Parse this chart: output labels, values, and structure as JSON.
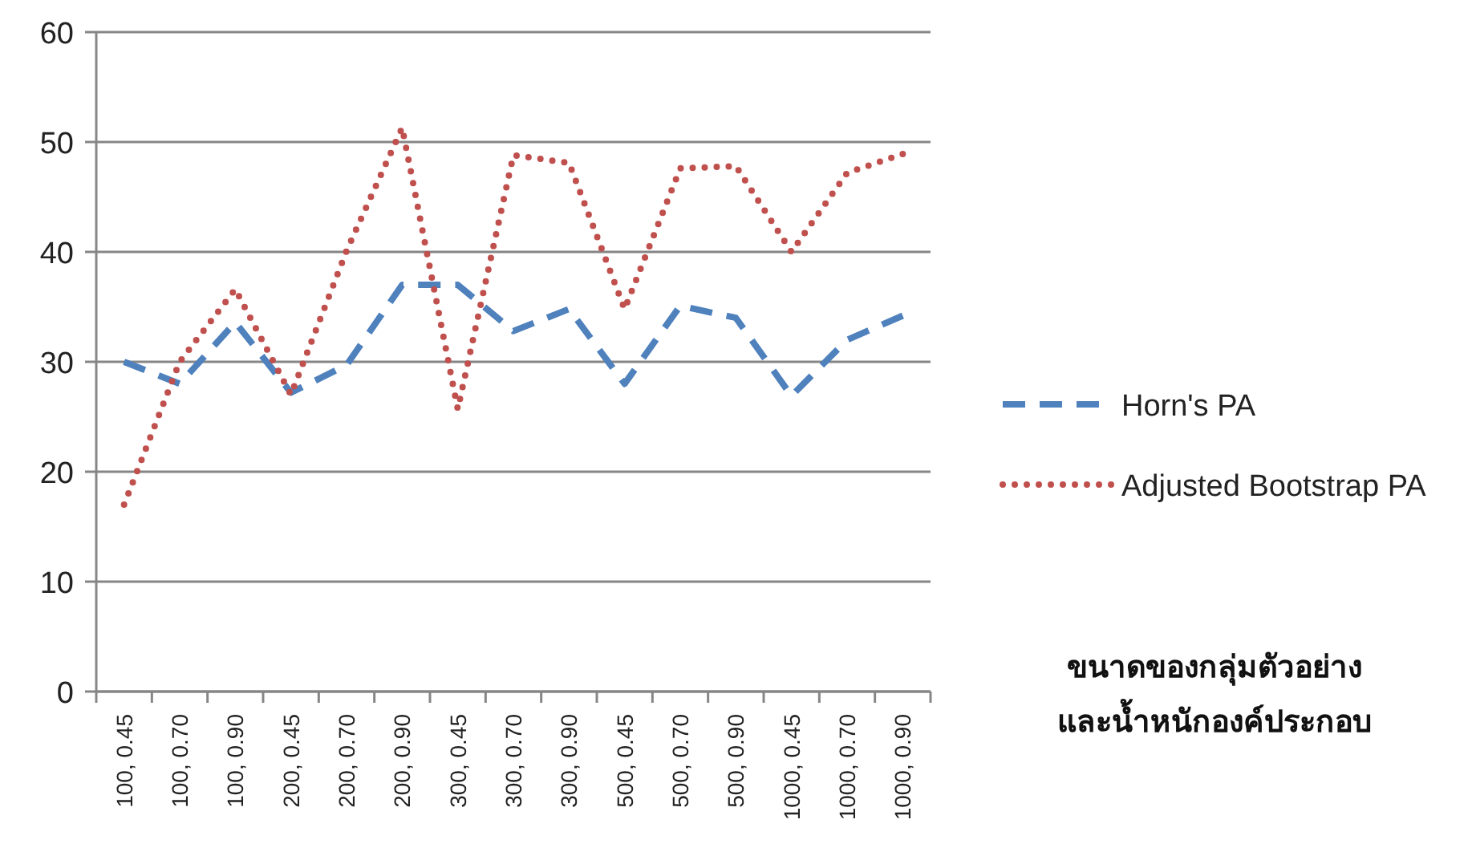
{
  "chart_data": {
    "type": "line",
    "categories": [
      "100, 0.45",
      "100, 0.70",
      "100, 0.90",
      "200, 0.45",
      "200, 0.70",
      "200, 0.90",
      "300, 0.45",
      "300, 0.70",
      "300, 0.90",
      "500, 0.45",
      "500, 0.70",
      "500, 0.90",
      "1000, 0.45",
      "1000, 0.70",
      "1000, 0.90"
    ],
    "series": [
      {
        "name": "Horn's PA",
        "color": "#4f81bd",
        "line_style": "dashed",
        "values": [
          30,
          28,
          33.6,
          27.2,
          29.7,
          37,
          37,
          32.8,
          34.8,
          28,
          35.1,
          34,
          26.9,
          32,
          34.2
        ]
      },
      {
        "name": "Adjusted Bootstrap PA",
        "color": "#c0504d",
        "line_style": "dotted",
        "values": [
          17,
          30,
          36.6,
          27,
          40.1,
          51.3,
          25.7,
          48.8,
          48.1,
          34.8,
          47.6,
          47.8,
          40,
          47.2,
          48.9
        ]
      }
    ],
    "xlabel": "ขนาดของกลุ่มตัวอย่าง\nและน้ำหนักองค์ประกอบ",
    "ylim": [
      0,
      60
    ],
    "yticks": [
      0,
      10,
      20,
      30,
      40,
      50,
      60
    ],
    "grid": "y",
    "legend": "right"
  }
}
